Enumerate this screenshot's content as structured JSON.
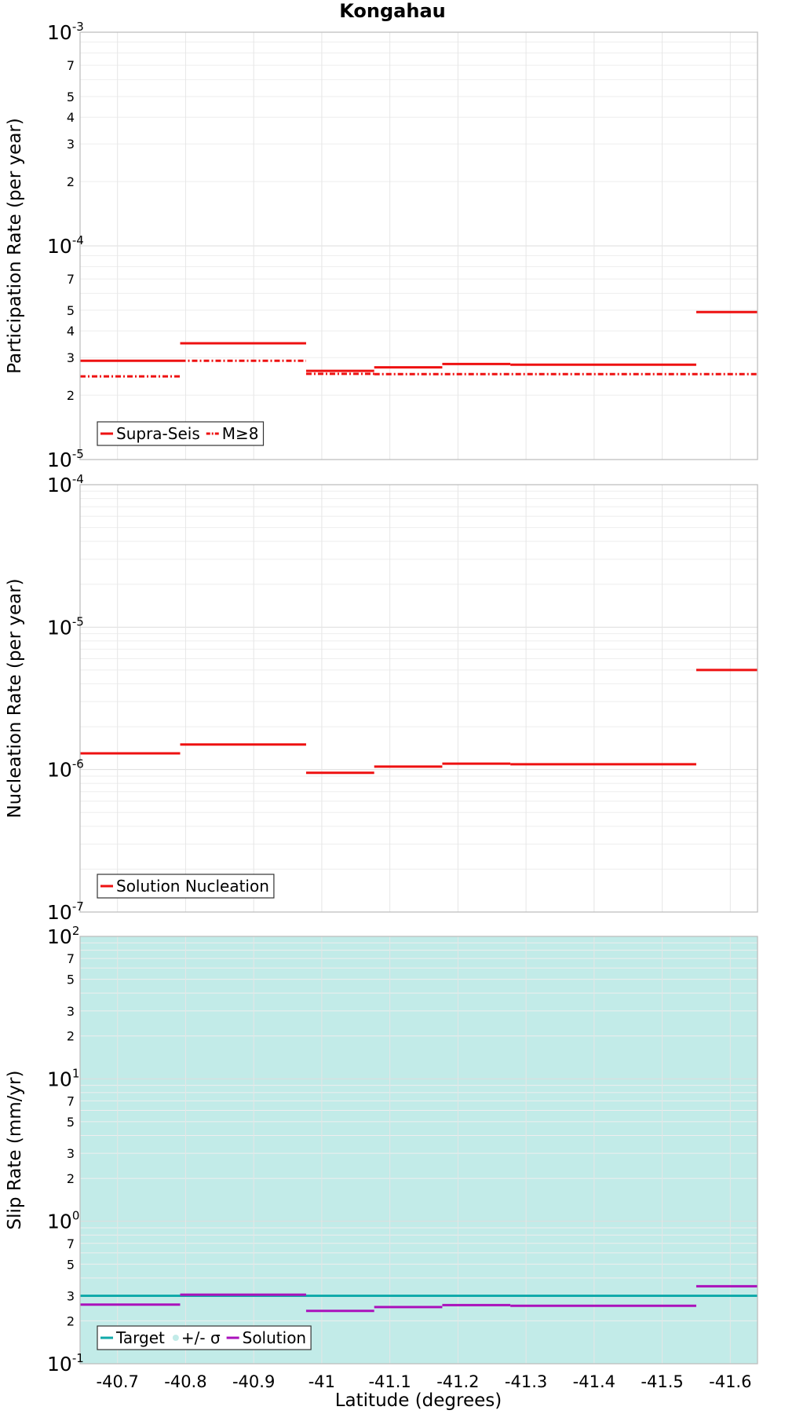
{
  "chart_data": {
    "type": "line",
    "title": "Kongahau",
    "xlabel": "Latitude (degrees)",
    "xlim": [
      -40.645,
      -41.64
    ],
    "x_ticks": [
      -40.7,
      -40.8,
      -40.9,
      -41,
      -41.1,
      -41.2,
      -41.3,
      -41.4,
      -41.5,
      -41.6
    ],
    "x_tick_labels": [
      "-40.7",
      "-40.8",
      "-40.9",
      "-41",
      "-41.1",
      "-41.2",
      "-41.3",
      "-41.4",
      "-41.5",
      "-41.6"
    ],
    "grid": true,
    "panels": [
      {
        "ylabel": "Participation Rate (per year)",
        "yscale": "log",
        "ylim": [
          1e-05,
          0.001
        ],
        "decades": [
          {
            "base": "10",
            "exp": "-5"
          },
          {
            "base": "10",
            "exp": "-4"
          },
          {
            "base": "10",
            "exp": "-3"
          }
        ],
        "minor_labels": [
          "2",
          "3",
          "4",
          "5",
          "7"
        ],
        "legend": {
          "position": "bottom-left",
          "entries": [
            {
              "label": "Supra-Seis",
              "color": "#ee1111",
              "dash": "solid"
            },
            {
              "label": "M≥8",
              "color": "#ee1111",
              "dash": "dashdot"
            }
          ]
        },
        "series": [
          {
            "name": "Supra-Seis",
            "color": "#ee1111",
            "dash": "solid",
            "steps": [
              {
                "x0": -40.645,
                "x1": -40.792,
                "y": 2.9e-05
              },
              {
                "x0": -40.792,
                "x1": -40.977,
                "y": 3.5e-05
              },
              {
                "x0": -40.977,
                "x1": -41.077,
                "y": 2.6e-05
              },
              {
                "x0": -41.077,
                "x1": -41.177,
                "y": 2.7e-05
              },
              {
                "x0": -41.177,
                "x1": -41.277,
                "y": 2.8e-05
              },
              {
                "x0": -41.277,
                "x1": -41.55,
                "y": 2.78e-05
              },
              {
                "x0": -41.55,
                "x1": -41.64,
                "y": 4.9e-05
              }
            ]
          },
          {
            "name": "M≥8",
            "color": "#ee1111",
            "dash": "dashdot",
            "steps": [
              {
                "x0": -40.645,
                "x1": -40.792,
                "y": 2.45e-05
              },
              {
                "x0": -40.792,
                "x1": -40.977,
                "y": 2.9e-05
              },
              {
                "x0": -40.977,
                "x1": -41.077,
                "y": 2.52e-05
              },
              {
                "x0": -41.077,
                "x1": -41.64,
                "y": 2.51e-05
              }
            ]
          }
        ]
      },
      {
        "ylabel": "Nucleation Rate (per year)",
        "yscale": "log",
        "ylim": [
          1e-07,
          0.0001
        ],
        "decades": [
          {
            "base": "10",
            "exp": "-7"
          },
          {
            "base": "10",
            "exp": "-6"
          },
          {
            "base": "10",
            "exp": "-5"
          },
          {
            "base": "10",
            "exp": "-4"
          }
        ],
        "minor_labels": [],
        "legend": {
          "position": "bottom-left",
          "entries": [
            {
              "label": "Solution Nucleation",
              "color": "#ee1111",
              "dash": "solid"
            }
          ]
        },
        "series": [
          {
            "name": "Solution Nucleation",
            "color": "#ee1111",
            "dash": "solid",
            "steps": [
              {
                "x0": -40.645,
                "x1": -40.792,
                "y": 1.3e-06
              },
              {
                "x0": -40.792,
                "x1": -40.977,
                "y": 1.5e-06
              },
              {
                "x0": -40.977,
                "x1": -41.077,
                "y": 9.5e-07
              },
              {
                "x0": -41.077,
                "x1": -41.177,
                "y": 1.05e-06
              },
              {
                "x0": -41.177,
                "x1": -41.277,
                "y": 1.1e-06
              },
              {
                "x0": -41.277,
                "x1": -41.55,
                "y": 1.09e-06
              },
              {
                "x0": -41.55,
                "x1": -41.64,
                "y": 5e-06
              }
            ]
          }
        ]
      },
      {
        "ylabel": "Slip Rate (mm/yr)",
        "yscale": "log",
        "ylim": [
          0.1,
          100
        ],
        "decades": [
          {
            "base": "10",
            "exp": "-1"
          },
          {
            "base": "10",
            "exp": "0"
          },
          {
            "base": "10",
            "exp": "1"
          },
          {
            "base": "10",
            "exp": "2"
          }
        ],
        "minor_labels": [
          "2",
          "3",
          "5",
          "7"
        ],
        "band": {
          "name": "+/- σ",
          "color": "#c2ebe8",
          "y0": 0.1,
          "y1": 100
        },
        "legend": {
          "position": "bottom-left",
          "entries": [
            {
              "label": "Target",
              "color": "#11aaaa",
              "dash": "solid"
            },
            {
              "label": "+/- σ",
              "color": "#c2ebe8",
              "dash": "band"
            },
            {
              "label": "Solution",
              "color": "#aa11bb",
              "dash": "solid"
            }
          ]
        },
        "series": [
          {
            "name": "Target",
            "color": "#11aaaa",
            "dash": "solid",
            "steps": [
              {
                "x0": -40.645,
                "x1": -41.64,
                "y": 0.3
              }
            ]
          },
          {
            "name": "Solution",
            "color": "#aa11bb",
            "dash": "solid",
            "steps": [
              {
                "x0": -40.645,
                "x1": -40.792,
                "y": 0.26
              },
              {
                "x0": -40.792,
                "x1": -40.977,
                "y": 0.305
              },
              {
                "x0": -40.977,
                "x1": -41.077,
                "y": 0.235
              },
              {
                "x0": -41.077,
                "x1": -41.177,
                "y": 0.25
              },
              {
                "x0": -41.177,
                "x1": -41.277,
                "y": 0.258
              },
              {
                "x0": -41.277,
                "x1": -41.55,
                "y": 0.255
              },
              {
                "x0": -41.55,
                "x1": -41.64,
                "y": 0.35
              }
            ]
          }
        ]
      }
    ]
  }
}
